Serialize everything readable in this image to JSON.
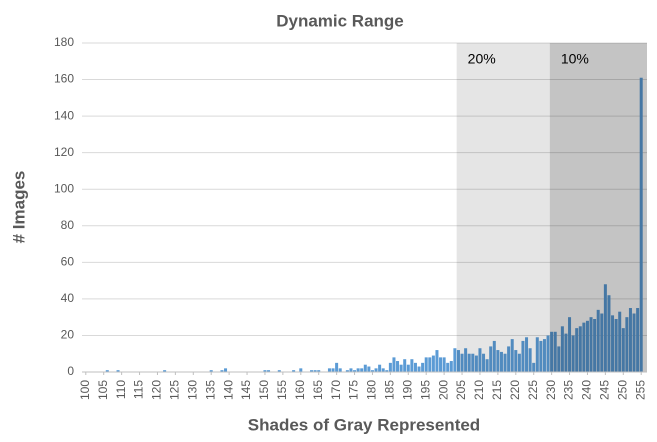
{
  "chart_data": {
    "type": "bar",
    "title": "Dynamic Range",
    "xlabel": "Shades of Gray Represented",
    "ylabel": "# Images",
    "x": [
      100,
      101,
      102,
      103,
      104,
      105,
      106,
      107,
      108,
      109,
      110,
      111,
      112,
      113,
      114,
      115,
      116,
      117,
      118,
      119,
      120,
      121,
      122,
      123,
      124,
      125,
      126,
      127,
      128,
      129,
      130,
      131,
      132,
      133,
      134,
      135,
      136,
      137,
      138,
      139,
      140,
      141,
      142,
      143,
      144,
      145,
      146,
      147,
      148,
      149,
      150,
      151,
      152,
      153,
      154,
      155,
      156,
      157,
      158,
      159,
      160,
      161,
      162,
      163,
      164,
      165,
      166,
      167,
      168,
      169,
      170,
      171,
      172,
      173,
      174,
      175,
      176,
      177,
      178,
      179,
      180,
      181,
      182,
      183,
      184,
      185,
      186,
      187,
      188,
      189,
      190,
      191,
      192,
      193,
      194,
      195,
      196,
      197,
      198,
      199,
      200,
      201,
      202,
      203,
      204,
      205,
      206,
      207,
      208,
      209,
      210,
      211,
      212,
      213,
      214,
      215,
      216,
      217,
      218,
      219,
      220,
      221,
      222,
      223,
      224,
      225,
      226,
      227,
      228,
      229,
      230,
      231,
      232,
      233,
      234,
      235,
      236,
      237,
      238,
      239,
      240,
      241,
      242,
      243,
      244,
      245,
      246,
      247,
      248,
      249,
      250,
      251,
      252,
      253,
      254,
      255
    ],
    "values": [
      0,
      0,
      0,
      0,
      0,
      0,
      1,
      0,
      0,
      1,
      0,
      0,
      0,
      0,
      0,
      0,
      0,
      0,
      0,
      0,
      0,
      0,
      1,
      0,
      0,
      0,
      0,
      0,
      0,
      0,
      0,
      0,
      0,
      0,
      0,
      1,
      0,
      0,
      1,
      2,
      0,
      0,
      0,
      0,
      0,
      0,
      0,
      0,
      0,
      0,
      1,
      1,
      0,
      0,
      1,
      0,
      0,
      0,
      1,
      0,
      2,
      0,
      0,
      1,
      1,
      1,
      0,
      0,
      2,
      2,
      5,
      2,
      0,
      1,
      2,
      1,
      2,
      2,
      4,
      3,
      1,
      2,
      4,
      2,
      1,
      5,
      8,
      6,
      4,
      7,
      4,
      7,
      5,
      3,
      5,
      8,
      8,
      9,
      12,
      8,
      8,
      5,
      6,
      13,
      12,
      10,
      13,
      10,
      10,
      9,
      13,
      10,
      7,
      14,
      17,
      12,
      11,
      10,
      14,
      18,
      12,
      10,
      17,
      19,
      13,
      5,
      19,
      17,
      18,
      20,
      22,
      22,
      14,
      25,
      21,
      30,
      20,
      24,
      25,
      27,
      28,
      30,
      29,
      34,
      32,
      48,
      42,
      31,
      29,
      33,
      24,
      30,
      35,
      32,
      35,
      161
    ],
    "color": "#5b9bd5",
    "xlim": [
      99.5,
      255.5
    ],
    "xticks": [
      100,
      105,
      110,
      115,
      120,
      125,
      130,
      135,
      140,
      145,
      150,
      155,
      160,
      165,
      170,
      175,
      180,
      185,
      190,
      195,
      200,
      205,
      210,
      215,
      220,
      225,
      230,
      235,
      240,
      245,
      250,
      255
    ],
    "ylim": [
      0,
      180
    ],
    "yticks": [
      0,
      20,
      40,
      60,
      80,
      100,
      120,
      140,
      160,
      180
    ],
    "grid": true,
    "regions": [
      {
        "label": "20%",
        "start": 203.5,
        "end": 255.5,
        "color": "rgba(0,0,0,0.10)"
      },
      {
        "label": "10%",
        "start": 229.5,
        "end": 255.5,
        "color": "rgba(0,0,0,0.14)"
      }
    ]
  }
}
